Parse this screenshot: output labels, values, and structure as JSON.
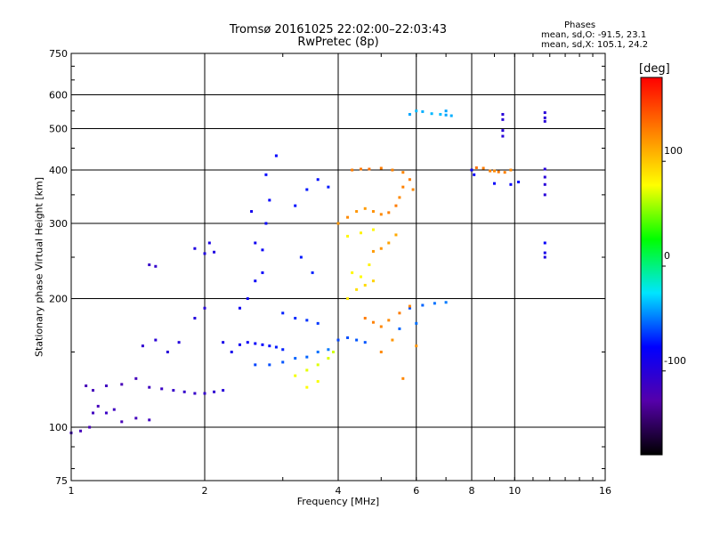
{
  "title": "Tromsø 20161025 22:02:00–22:03:43",
  "subtitle": "RwPretec (8p)",
  "phases": {
    "title": "Phases",
    "o_stats": "mean, sd,O: -91.5, 23.1",
    "x_stats": "mean, sd,X: 105.1, 24.2"
  },
  "chart_data": {
    "type": "scatter",
    "title": "Tromsø 20161025 22:02:00–22:03:43",
    "subtitle": "RwPretec (8p)",
    "xlabel": "Frequency [MHz]",
    "ylabel": "Stationary phase Virtual Height [km]",
    "x_scale": "log",
    "y_scale": "log",
    "xlim": [
      1,
      16
    ],
    "ylim": [
      75,
      750
    ],
    "x_ticks": [
      1,
      2,
      4,
      6,
      8,
      10,
      16
    ],
    "x_gridlines": [
      2,
      4,
      6,
      8,
      10
    ],
    "y_ticks": [
      75,
      100,
      200,
      300,
      400,
      500,
      600,
      750
    ],
    "y_gridlines": [
      100,
      200,
      300,
      400,
      500,
      600
    ],
    "grid": true,
    "colorbar": {
      "label": "[deg]",
      "range": [
        -180,
        180
      ],
      "ticks": [
        100,
        0,
        -100
      ],
      "colors": [
        "#000000",
        "#5500aa",
        "#0000ff",
        "#00e5ff",
        "#00ff00",
        "#ffff00",
        "#ff8000",
        "#ff0000"
      ]
    },
    "series": [
      {
        "points": [
          [
            1.0,
            97,
            -115
          ],
          [
            1.05,
            98,
            -118
          ],
          [
            1.1,
            100,
            -120
          ],
          [
            1.12,
            108,
            -115
          ],
          [
            1.15,
            112,
            -118
          ],
          [
            1.2,
            108,
            -112
          ],
          [
            1.25,
            110,
            -115
          ],
          [
            1.3,
            103,
            -120
          ],
          [
            1.4,
            105,
            -118
          ],
          [
            1.5,
            104,
            -115
          ],
          [
            1.08,
            125,
            -120
          ],
          [
            1.12,
            122,
            -118
          ],
          [
            1.2,
            125,
            -115
          ],
          [
            1.3,
            126,
            -120
          ],
          [
            1.4,
            130,
            -118
          ],
          [
            1.5,
            124,
            -115
          ],
          [
            1.6,
            123,
            -112
          ],
          [
            1.7,
            122,
            -110
          ],
          [
            1.8,
            121,
            -108
          ],
          [
            1.9,
            120,
            -110
          ],
          [
            2.0,
            120,
            -108
          ],
          [
            2.1,
            121,
            -105
          ],
          [
            2.2,
            122,
            -100
          ],
          [
            1.45,
            155,
            -105
          ],
          [
            1.55,
            160,
            -102
          ],
          [
            1.65,
            150,
            -100
          ],
          [
            1.75,
            158,
            -98
          ],
          [
            1.5,
            240,
            -110
          ],
          [
            1.55,
            238,
            -108
          ],
          [
            1.9,
            180,
            -98
          ],
          [
            2.0,
            190,
            -100
          ],
          [
            2.0,
            255,
            -95
          ],
          [
            2.1,
            257,
            -95
          ],
          [
            1.9,
            262,
            -95
          ],
          [
            2.05,
            270,
            -92
          ]
        ]
      },
      {
        "points": [
          [
            2.2,
            158,
            -90
          ],
          [
            2.3,
            150,
            -88
          ],
          [
            2.4,
            156,
            -85
          ],
          [
            2.5,
            158,
            -82
          ],
          [
            2.6,
            157,
            -80
          ],
          [
            2.7,
            156,
            -78
          ],
          [
            2.8,
            155,
            -75
          ],
          [
            2.9,
            154,
            -72
          ],
          [
            3.0,
            152,
            -70
          ],
          [
            2.4,
            190,
            -85
          ],
          [
            2.5,
            200,
            -83
          ],
          [
            2.6,
            220,
            -82
          ],
          [
            2.7,
            230,
            -80
          ],
          [
            2.7,
            260,
            -82
          ],
          [
            2.75,
            300,
            -80
          ],
          [
            2.8,
            340,
            -78
          ],
          [
            2.75,
            390,
            -76
          ],
          [
            2.9,
            432,
            -78
          ],
          [
            2.55,
            320,
            -88
          ],
          [
            2.6,
            270,
            -86
          ],
          [
            3.0,
            185,
            -70
          ],
          [
            3.2,
            180,
            -68
          ],
          [
            3.4,
            178,
            -66
          ],
          [
            3.6,
            175,
            -65
          ],
          [
            3.5,
            230,
            -70
          ],
          [
            3.3,
            250,
            -72
          ],
          [
            3.2,
            330,
            -74
          ],
          [
            3.4,
            360,
            -72
          ],
          [
            3.6,
            380,
            -74
          ],
          [
            3.8,
            365,
            -72
          ],
          [
            4.0,
            160,
            -62
          ],
          [
            4.2,
            162,
            -60
          ],
          [
            4.4,
            160,
            -58
          ],
          [
            4.6,
            158,
            -58
          ],
          [
            2.6,
            140,
            -62
          ],
          [
            2.8,
            140,
            -60
          ],
          [
            3.0,
            142,
            -58
          ],
          [
            3.2,
            145,
            -55
          ],
          [
            3.4,
            146,
            -55
          ],
          [
            3.6,
            150,
            -52
          ],
          [
            3.8,
            152,
            -50
          ],
          [
            5.8,
            190,
            -60
          ],
          [
            6.2,
            193,
            -55
          ],
          [
            6.6,
            195,
            -52
          ],
          [
            7.0,
            196,
            -50
          ],
          [
            5.5,
            170,
            -55
          ],
          [
            6.0,
            175,
            -52
          ]
        ]
      },
      {
        "points": [
          [
            3.2,
            132,
            75
          ],
          [
            3.4,
            136,
            72
          ],
          [
            3.6,
            140,
            70
          ],
          [
            3.8,
            145,
            70
          ],
          [
            3.9,
            150,
            68
          ],
          [
            3.4,
            124,
            78
          ],
          [
            3.6,
            128,
            76
          ],
          [
            4.2,
            280,
            80
          ],
          [
            4.5,
            285,
            82
          ],
          [
            4.8,
            290,
            80
          ],
          [
            4.2,
            200,
            85
          ],
          [
            4.4,
            210,
            90
          ],
          [
            4.6,
            215,
            92
          ],
          [
            4.8,
            220,
            95
          ],
          [
            4.3,
            230,
            80
          ],
          [
            4.5,
            225,
            78
          ],
          [
            4.7,
            240,
            82
          ]
        ]
      },
      {
        "points": [
          [
            4.0,
            300,
            120
          ],
          [
            4.2,
            310,
            125
          ],
          [
            4.4,
            320,
            120
          ],
          [
            4.6,
            325,
            118
          ],
          [
            4.8,
            320,
            122
          ],
          [
            5.0,
            315,
            125
          ],
          [
            5.2,
            318,
            128
          ],
          [
            5.4,
            330,
            130
          ],
          [
            5.5,
            345,
            125
          ],
          [
            4.3,
            400,
            130
          ],
          [
            4.5,
            402,
            132
          ],
          [
            4.7,
            402,
            135
          ],
          [
            5.0,
            404,
            130
          ],
          [
            5.3,
            400,
            128
          ],
          [
            5.6,
            395,
            126
          ],
          [
            5.8,
            380,
            130
          ],
          [
            5.9,
            360,
            125
          ],
          [
            5.6,
            365,
            128
          ],
          [
            4.6,
            180,
            130
          ],
          [
            4.8,
            176,
            128
          ],
          [
            5.0,
            172,
            126
          ],
          [
            5.2,
            178,
            124
          ],
          [
            5.5,
            185,
            130
          ],
          [
            5.8,
            192,
            126
          ],
          [
            4.8,
            258,
            118
          ],
          [
            5.0,
            262,
            120
          ],
          [
            5.2,
            270,
            115
          ],
          [
            5.4,
            282,
            112
          ],
          [
            5.0,
            150,
            125
          ],
          [
            5.3,
            160,
            120
          ],
          [
            5.6,
            130,
            126
          ],
          [
            6.0,
            155,
            120
          ],
          [
            8.2,
            405,
            135
          ],
          [
            8.5,
            404,
            130
          ],
          [
            8.8,
            398,
            128
          ],
          [
            9.0,
            398,
            125
          ],
          [
            9.2,
            396,
            130
          ],
          [
            9.5,
            395,
            128
          ],
          [
            9.8,
            400,
            126
          ]
        ]
      },
      {
        "points": [
          [
            5.8,
            540,
            -40
          ],
          [
            6.0,
            550,
            -35
          ],
          [
            6.2,
            548,
            -38
          ],
          [
            6.5,
            542,
            -36
          ],
          [
            6.8,
            540,
            -35
          ],
          [
            7.0,
            538,
            -40
          ],
          [
            7.2,
            536,
            -38
          ],
          [
            7.0,
            550,
            -40
          ],
          [
            9.4,
            540,
            -100
          ],
          [
            9.4,
            525,
            -100
          ],
          [
            9.4,
            495,
            -100
          ],
          [
            9.4,
            480,
            -100
          ],
          [
            11.7,
            545,
            -100
          ],
          [
            11.7,
            530,
            -100
          ],
          [
            11.7,
            520,
            -100
          ],
          [
            11.7,
            402,
            -100
          ],
          [
            11.7,
            385,
            -100
          ],
          [
            11.7,
            370,
            -100
          ],
          [
            11.7,
            350,
            -100
          ],
          [
            11.7,
            256,
            -90
          ],
          [
            11.7,
            250,
            -95
          ],
          [
            11.7,
            270,
            -80
          ],
          [
            9.8,
            370,
            -80
          ],
          [
            10.2,
            375,
            -75
          ],
          [
            9.0,
            372,
            -80
          ],
          [
            8.0,
            400,
            -85
          ],
          [
            8.1,
            390,
            -80
          ]
        ]
      }
    ]
  }
}
